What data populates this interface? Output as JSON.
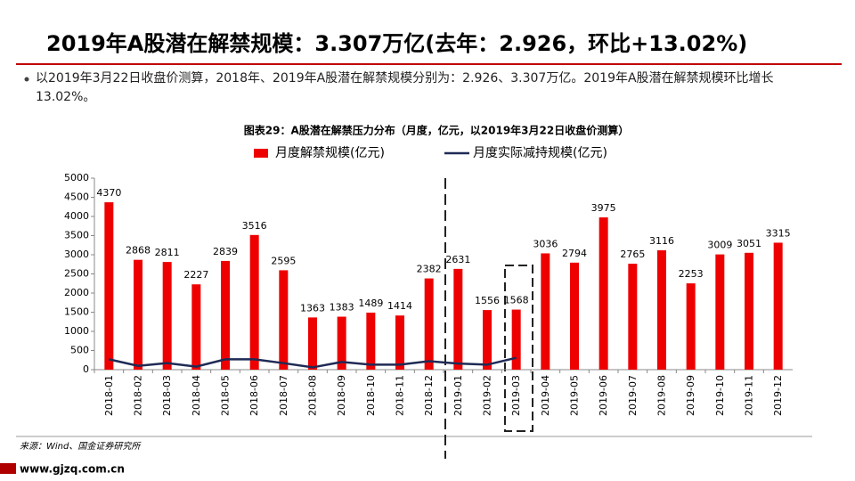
{
  "header": {
    "title": "2019年A股潜在解禁规模：3.307万亿(去年：2.926，环比+13.02%)",
    "bullet": "以2019年3月22日收盘价测算，2018年、2019年A股潜在解禁规模分别为：2.926、3.307万亿。2019年A股潜在解禁规模环比增长13.02%。"
  },
  "chart_data": {
    "type": "bar",
    "title": "图表29：A股潜在解禁压力分布（月度，亿元，以2019年3月22日收盘价测算）",
    "categories": [
      "2018-01",
      "2018-02",
      "2018-03",
      "2018-04",
      "2018-05",
      "2018-06",
      "2018-07",
      "2018-08",
      "2018-09",
      "2018-10",
      "2018-11",
      "2018-12",
      "2019-01",
      "2019-02",
      "2019-03",
      "2019-04",
      "2019-05",
      "2019-06",
      "2019-07",
      "2019-08",
      "2019-09",
      "2019-10",
      "2019-11",
      "2019-12"
    ],
    "series": [
      {
        "name": "月度解禁规模(亿元)",
        "color": "#ee0000",
        "type": "bar",
        "values": [
          4370,
          2868,
          2811,
          2227,
          2839,
          3516,
          2595,
          1363,
          1383,
          1489,
          1414,
          2382,
          2631,
          1556,
          1568,
          3036,
          2794,
          3975,
          2765,
          3116,
          2253,
          3009,
          3051,
          3315
        ]
      },
      {
        "name": "月度实际减持规模(亿元)",
        "color": "#1f2a55",
        "type": "line",
        "values": [
          270,
          100,
          170,
          80,
          270,
          270,
          170,
          60,
          200,
          130,
          130,
          220,
          160,
          130,
          310,
          null,
          null,
          null,
          null,
          null,
          null,
          null,
          null,
          null
        ]
      }
    ],
    "ylim": [
      0,
      5000
    ],
    "yticks": [
      0,
      500,
      1000,
      1500,
      2000,
      2500,
      3000,
      3500,
      4000,
      4500,
      5000
    ],
    "source": "来源：Wind、国金证券研究所"
  },
  "footer": {
    "url": "www.gjzq.com.cn"
  }
}
